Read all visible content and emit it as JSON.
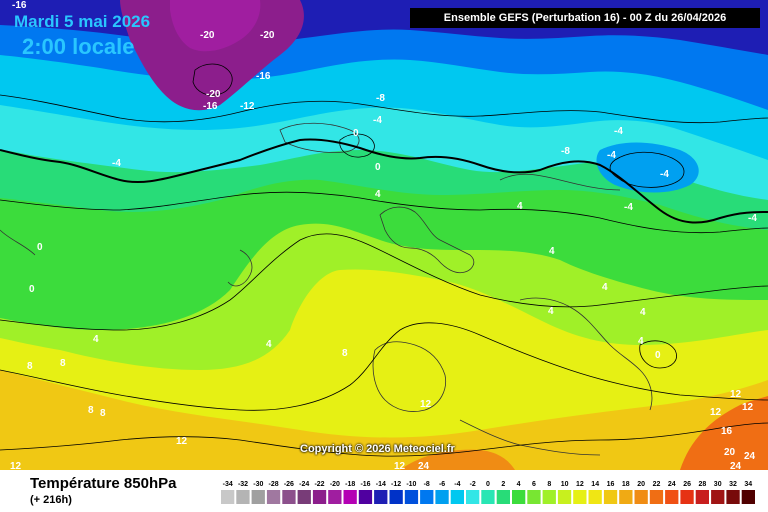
{
  "header": {
    "date": "Mardi 5 mai 2026",
    "local_time": "2:00 locale",
    "model_info": "Ensemble GEFS  (Perturbation 16)  -  00 Z du 26/04/2026"
  },
  "footer": {
    "variable_title": "Température 850hPa",
    "forecast_hour": "(+ 216h)",
    "copyright": "Copyright © 2026 Meteociel.fr"
  },
  "legend": {
    "values": [
      "-34",
      "-32",
      "-30",
      "-28",
      "-26",
      "-24",
      "-22",
      "-20",
      "-18",
      "-16",
      "-14",
      "-12",
      "-10",
      "-8",
      "-6",
      "-4",
      "-2",
      "0",
      "2",
      "4",
      "6",
      "8",
      "10",
      "12",
      "14",
      "16",
      "18",
      "20",
      "22",
      "24",
      "26",
      "28",
      "30",
      "32",
      "34"
    ],
    "colors": [
      "#c8c8c8",
      "#b4b4b4",
      "#a0a0a0",
      "#a078a0",
      "#8c508c",
      "#783c78",
      "#8c1e8c",
      "#a01ea0",
      "#b400b4",
      "#5000a0",
      "#1e1eb4",
      "#0032c8",
      "#0050dc",
      "#0078f0",
      "#00a0f0",
      "#00c8f0",
      "#32e6e6",
      "#28e6b4",
      "#28dc78",
      "#3cdc3c",
      "#78e632",
      "#a0f028",
      "#c8f01e",
      "#e6f014",
      "#f0e614",
      "#f0c814",
      "#f0aa14",
      "#f08c14",
      "#f06e14",
      "#f05014",
      "#e63214",
      "#c81e1e",
      "#a01414",
      "#780a0a",
      "#500000"
    ]
  },
  "isotherm_labels": [
    {
      "text": "-16"
    },
    {
      "text": "-20"
    },
    {
      "text": "-20"
    },
    {
      "text": "-16"
    },
    {
      "text": "-20"
    },
    {
      "text": "-16"
    },
    {
      "text": "-12"
    },
    {
      "text": "-8"
    },
    {
      "text": "-4"
    },
    {
      "text": "0"
    },
    {
      "text": "-4"
    },
    {
      "text": "0"
    },
    {
      "text": "4"
    },
    {
      "text": "-4"
    },
    {
      "text": "-8"
    },
    {
      "text": "-4"
    },
    {
      "text": "-4"
    },
    {
      "text": "-4"
    },
    {
      "text": "-4"
    },
    {
      "text": "4"
    },
    {
      "text": "0"
    },
    {
      "text": "0"
    },
    {
      "text": "4"
    },
    {
      "text": "4"
    },
    {
      "text": "4"
    },
    {
      "text": "4"
    },
    {
      "text": "4"
    },
    {
      "text": "8"
    },
    {
      "text": "8"
    },
    {
      "text": "8"
    },
    {
      "text": "8"
    },
    {
      "text": "12"
    },
    {
      "text": "12"
    },
    {
      "text": "12"
    },
    {
      "text": "12"
    },
    {
      "text": "4"
    },
    {
      "text": "0"
    },
    {
      "text": "12"
    },
    {
      "text": "12"
    },
    {
      "text": "16"
    },
    {
      "text": "20"
    },
    {
      "text": "24"
    },
    {
      "text": "24"
    },
    {
      "text": "12"
    },
    {
      "text": "24"
    },
    {
      "text": "4"
    },
    {
      "text": "8"
    }
  ]
}
